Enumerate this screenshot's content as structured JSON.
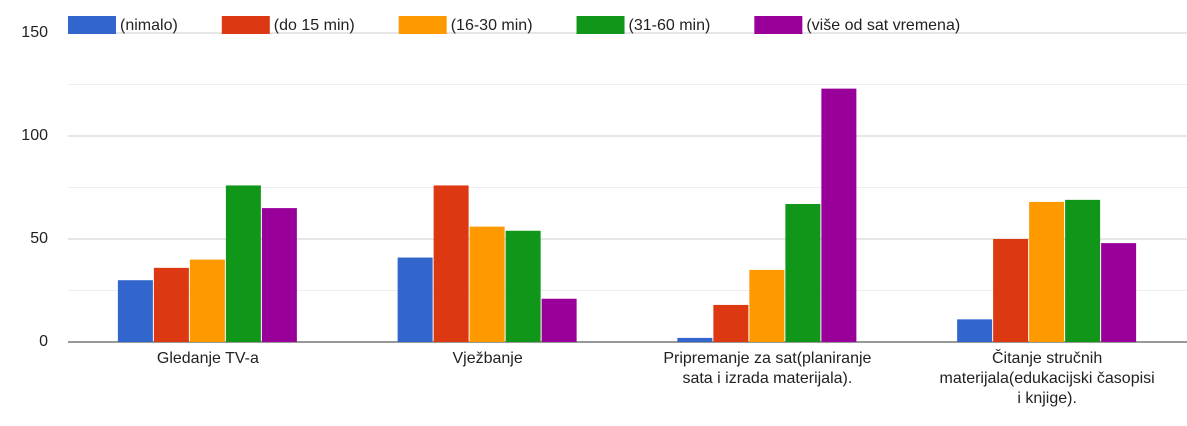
{
  "chart_data": {
    "type": "bar",
    "categories": [
      "Gledanje TV-a",
      "Vježbanje",
      "Pripremanje za sat(planiranje sata i izrada materijala).",
      "Čitanje stručnih materijala(edukacijski časopisi i knjige)."
    ],
    "series": [
      {
        "name": "(nimalo)",
        "color": "#3366cc",
        "values": [
          30,
          41,
          2,
          11
        ]
      },
      {
        "name": "(do 15 min)",
        "color": "#dc3912",
        "values": [
          36,
          76,
          18,
          50
        ]
      },
      {
        "name": "(16-30 min)",
        "color": "#ff9900",
        "values": [
          40,
          56,
          35,
          68
        ]
      },
      {
        "name": "(31-60 min)",
        "color": "#109618",
        "values": [
          76,
          54,
          67,
          69
        ]
      },
      {
        "name": "(više od sat vremena)",
        "color": "#990099",
        "values": [
          65,
          21,
          123,
          48
        ]
      }
    ],
    "ylim": [
      0,
      150
    ],
    "yticks": [
      0,
      50,
      100,
      150
    ],
    "minor_yticks": [
      25,
      75,
      125
    ],
    "grid": true,
    "legend": "top"
  }
}
